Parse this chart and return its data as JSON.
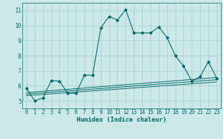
{
  "xlabel": "Humidex (Indice chaleur)",
  "bg_color": "#cce8e8",
  "grid_color": "#aad0d0",
  "line_color": "#006666",
  "xlim": [
    -0.5,
    23.5
  ],
  "ylim": [
    4.5,
    11.5
  ],
  "xticks": [
    0,
    1,
    2,
    3,
    4,
    5,
    6,
    7,
    8,
    9,
    10,
    11,
    12,
    13,
    14,
    15,
    16,
    17,
    18,
    19,
    20,
    21,
    22,
    23
  ],
  "yticks": [
    5,
    6,
    7,
    8,
    9,
    10,
    11
  ],
  "main_x": [
    0,
    1,
    2,
    3,
    4,
    5,
    6,
    7,
    8,
    9,
    10,
    11,
    12,
    13,
    14,
    15,
    16,
    17,
    18,
    19,
    20,
    21,
    22,
    23
  ],
  "main_y": [
    5.85,
    5.0,
    5.2,
    6.35,
    6.3,
    5.5,
    5.5,
    6.7,
    6.7,
    9.85,
    10.6,
    10.35,
    11.05,
    9.5,
    9.5,
    9.5,
    9.9,
    9.2,
    8.0,
    7.3,
    6.3,
    6.6,
    7.6,
    6.5
  ],
  "line1_x": [
    0,
    23
  ],
  "line1_y": [
    5.55,
    6.55
  ],
  "line2_x": [
    0,
    23
  ],
  "line2_y": [
    5.45,
    6.4
  ],
  "line3_x": [
    0,
    23
  ],
  "line3_y": [
    5.35,
    6.25
  ],
  "font_size_tick": 5.5,
  "font_size_label": 6.5
}
